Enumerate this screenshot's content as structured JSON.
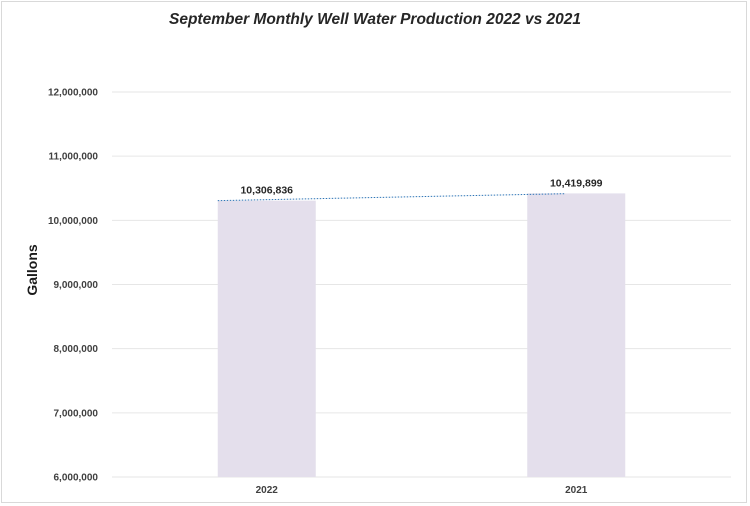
{
  "chart_data": {
    "type": "bar",
    "title": "September Monthly Well Water Production 2022 vs 2021",
    "ylabel": "Gallons",
    "xlabel": "",
    "categories": [
      "2022",
      "2021"
    ],
    "values": [
      10306836,
      10419899
    ],
    "data_labels": [
      "10,306,836",
      "10,419,899"
    ],
    "yticks": [
      "6,000,000",
      "7,000,000",
      "8,000,000",
      "9,000,000",
      "10,000,000",
      "11,000,000",
      "12,000,000"
    ],
    "ylim": [
      6000000,
      12000000
    ],
    "trendline": "linear",
    "grid": true,
    "bar_color": "#e4dfec",
    "trendline_color": "#2e75b6"
  }
}
